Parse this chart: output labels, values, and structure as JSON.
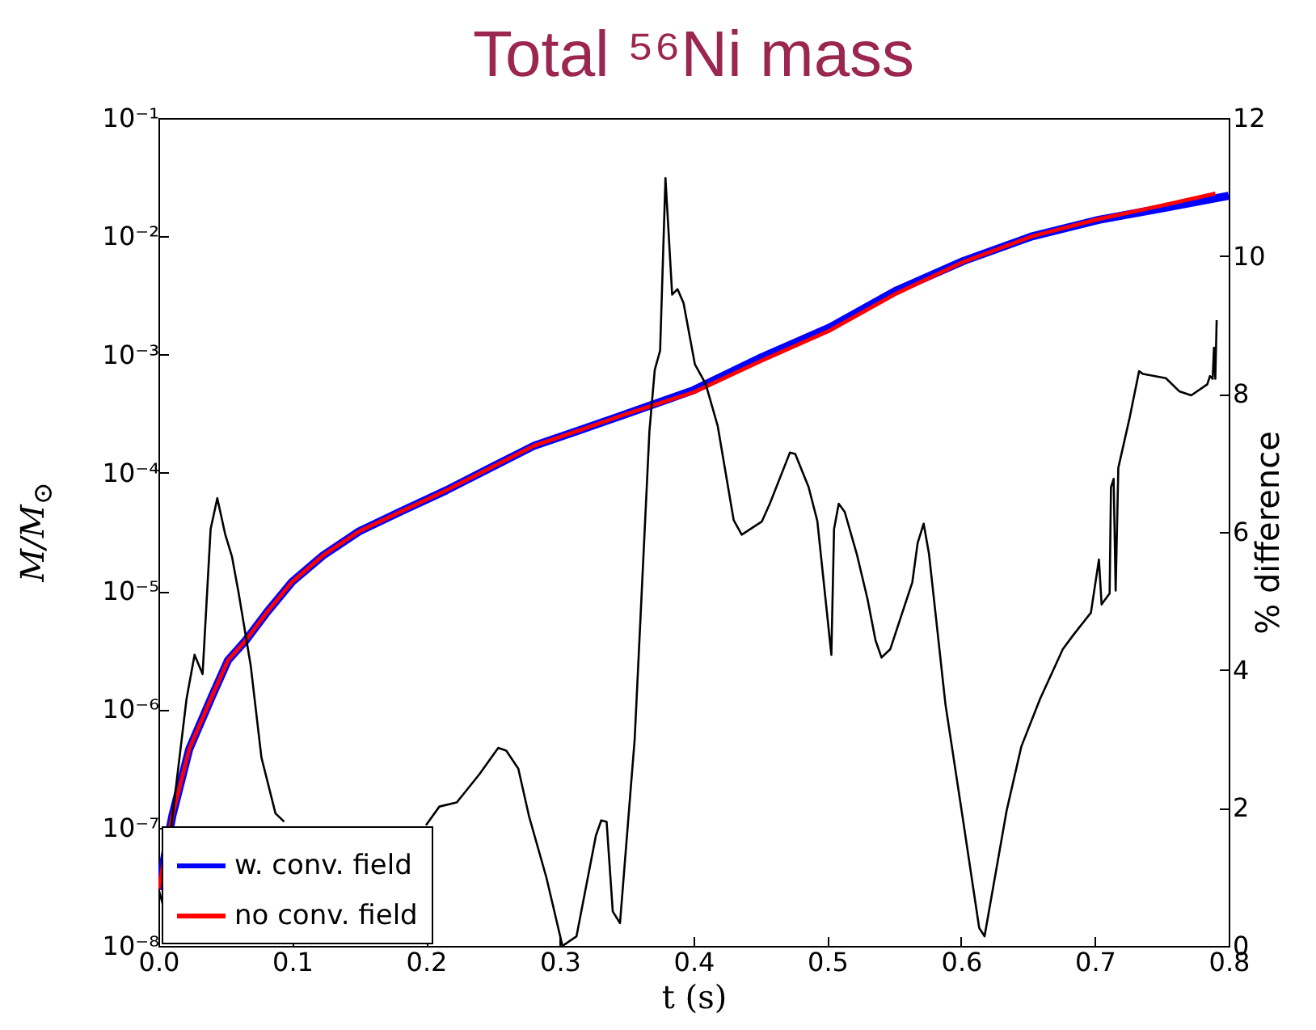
{
  "chart_data": {
    "type": "line",
    "title": "Total ⁵⁶Ni mass",
    "xlabel": "t (s)",
    "ylabel": "M/M$_{⊙}$",
    "y2label": "% difference",
    "log": "y",
    "legend": "bottom left",
    "xlim": [
      0,
      0.8
    ],
    "xticks": [
      {
        "value": 0,
        "label": "0.0"
      },
      {
        "value": 0.1,
        "label": "0.1"
      },
      {
        "value": 0.2,
        "label": "0.2"
      },
      {
        "value": 0.3,
        "label": "0.3"
      },
      {
        "value": 0.4,
        "label": "0.4"
      },
      {
        "value": 0.5,
        "label": "0.5"
      },
      {
        "value": 0.6,
        "label": "0.6"
      },
      {
        "value": 0.7,
        "label": "0.7"
      },
      {
        "value": 0.8,
        "label": "0.8"
      }
    ],
    "ylim": [
      1e-08,
      0.1
    ],
    "yticks": [
      {
        "value": 1e-08,
        "label": "10⁻⁸"
      },
      {
        "value": 1e-07,
        "label": "10⁻⁷"
      },
      {
        "value": 1e-06,
        "label": "10⁻⁶"
      },
      {
        "value": 1e-05,
        "label": "10⁻⁵"
      },
      {
        "value": 0.0001,
        "label": "10⁻⁴"
      },
      {
        "value": 0.001,
        "label": "10⁻³"
      },
      {
        "value": 0.01,
        "label": "10⁻²"
      },
      {
        "value": 0.1,
        "label": "10⁻¹"
      }
    ],
    "y2lim": [
      0,
      12
    ],
    "y2ticks": [
      0,
      2,
      4,
      6,
      8,
      10,
      12
    ],
    "series": [
      {
        "name": "w. conv. field",
        "color": "#0000ff",
        "x": [
          0,
          0.0104,
          0.023,
          0.04,
          0.052,
          0.065,
          0.081,
          0.1,
          0.123,
          0.15,
          0.181,
          0.215,
          0.248,
          0.281,
          0.315,
          0.348,
          0.381,
          0.4,
          0.451,
          0.502,
          0.552,
          0.602,
          0.653,
          0.703,
          0.753,
          0.8
        ],
        "values": [
          3e-08,
          1.26e-07,
          4.6e-07,
          1.29e-06,
          2.6e-06,
          3.8e-06,
          6.6e-06,
          1.2e-05,
          2e-05,
          3.2e-05,
          4.7e-05,
          7.1e-05,
          0.00011,
          0.00017,
          0.00023,
          0.00031,
          0.00042,
          0.0005,
          0.00095,
          0.0017,
          0.0035,
          0.0062,
          0.01,
          0.0138,
          0.0175,
          0.022
        ]
      },
      {
        "name": "no conv. field",
        "color": "#ff0000",
        "x": [
          0,
          0.0104,
          0.023,
          0.04,
          0.052,
          0.065,
          0.081,
          0.1,
          0.123,
          0.15,
          0.181,
          0.215,
          0.248,
          0.281,
          0.315,
          0.348,
          0.381,
          0.4,
          0.451,
          0.502,
          0.552,
          0.602,
          0.653,
          0.703,
          0.753,
          0.79
        ],
        "values": [
          3e-08,
          1.26e-07,
          4.6e-07,
          1.29e-06,
          2.6e-06,
          3.8e-06,
          6.6e-06,
          1.2e-05,
          2e-05,
          3.2e-05,
          4.7e-05,
          7.1e-05,
          0.00011,
          0.00017,
          0.00023,
          0.00031,
          0.00041,
          0.00048,
          0.00089,
          0.0016,
          0.0033,
          0.0061,
          0.01,
          0.014,
          0.0185,
          0.023
        ]
      },
      {
        "color": "#000000",
        "axis": "y2",
        "x": [
          0,
          0.004,
          0.01,
          0.021,
          0.027,
          0.033,
          0.039,
          0.044,
          0.05,
          0.055,
          0.06,
          0.069,
          0.077,
          0.0875,
          0.094,
          0.102,
          0.11,
          0.121,
          0.135,
          0.15,
          0.165,
          0.175,
          0.185,
          0.2,
          0.21,
          0.223,
          0.24,
          0.254,
          0.26,
          0.269,
          0.277,
          0.29,
          0.302,
          0.3125,
          0.327,
          0.331,
          0.335,
          0.3396,
          0.345,
          0.356,
          0.367,
          0.371,
          0.375,
          0.379,
          0.384,
          0.388,
          0.3925,
          0.401,
          0.409,
          0.418,
          0.43,
          0.436,
          0.451,
          0.457,
          0.472,
          0.476,
          0.486,
          0.4925,
          0.503,
          0.505,
          0.5085,
          0.513,
          0.522,
          0.53,
          0.536,
          0.5405,
          0.547,
          0.5635,
          0.5675,
          0.572,
          0.576,
          0.5883,
          0.601,
          0.6135,
          0.6175,
          0.634,
          0.645,
          0.659,
          0.676,
          0.684,
          0.697,
          0.703,
          0.705,
          0.711,
          0.712,
          0.714,
          0.7155,
          0.7175,
          0.726,
          0.733,
          0.736,
          0.753,
          0.763,
          0.772,
          0.784,
          0.786,
          0.788,
          0.789,
          0.79,
          0.791
        ],
        "values": [
          0.83,
          0.55,
          1.8,
          3.58,
          4.22,
          3.94,
          6.04,
          6.49,
          5.96,
          5.64,
          5.11,
          4.06,
          2.73,
          1.92,
          1.8,
          null,
          null,
          null,
          null,
          null,
          null,
          null,
          null,
          1.75,
          2.02,
          2.08,
          2.49,
          2.87,
          2.83,
          2.57,
          1.88,
          0.99,
          0.0,
          0.14,
          1.6,
          1.82,
          1.8,
          0.5,
          0.33,
          3.0,
          7.46,
          8.35,
          8.63,
          11.13,
          9.44,
          9.52,
          9.32,
          8.43,
          8.15,
          7.54,
          6.17,
          5.96,
          6.15,
          6.41,
          7.15,
          7.13,
          6.65,
          6.16,
          4.22,
          6.04,
          6.41,
          6.29,
          5.68,
          5.03,
          4.43,
          4.18,
          4.3,
          5.27,
          5.84,
          6.12,
          5.68,
          3.5,
          1.88,
          0.26,
          0.14,
          1.96,
          2.89,
          3.58,
          4.3,
          4.51,
          4.83,
          5.6,
          4.95,
          5.11,
          6.65,
          6.77,
          5.15,
          6.93,
          7.66,
          8.33,
          8.29,
          8.23,
          8.04,
          7.98,
          8.14,
          8.26,
          8.22,
          8.67,
          8.22,
          9.07
        ]
      }
    ]
  }
}
